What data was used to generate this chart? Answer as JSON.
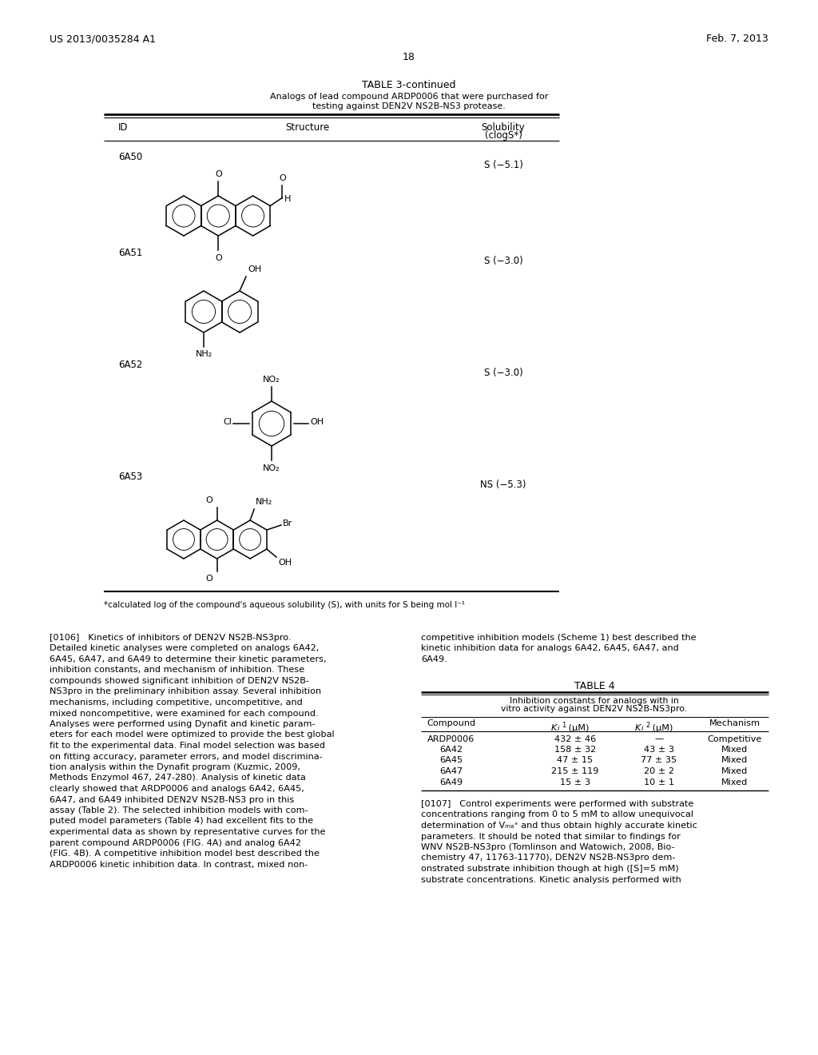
{
  "bg_color": "#ffffff",
  "header_left": "US 2013/0035284 A1",
  "header_right": "Feb. 7, 2013",
  "page_number": "18",
  "table3_title": "TABLE 3-continued",
  "table3_subtitle1": "Analogs of lead compound ARDP0006 that were purchased for",
  "table3_subtitle2": "testing against DEN2V NS2B-NS3 protease.",
  "table3_col1": "ID",
  "table3_col2": "Structure",
  "table3_col3a": "Solubility",
  "table3_col3b": "(clogS*)",
  "table3_footnote": "*calculated log of the compound's aqueous solubility (S), with units for S being mol l⁻¹",
  "compounds": [
    {
      "id": "6A50",
      "solubility": "S (−5.1)"
    },
    {
      "id": "6A51",
      "solubility": "S (−3.0)"
    },
    {
      "id": "6A52",
      "solubility": "S (−3.0)"
    },
    {
      "id": "6A53",
      "solubility": "NS (−5.3)"
    }
  ],
  "table4_title": "TABLE 4",
  "table4_subtitle1": "Inhibition constants for analogs with in",
  "table4_subtitle2": "vitro activity against DEN2V NS2B-NS3pro.",
  "table4_col1": "Compound",
  "table4_col2": "Ki1 (μM)",
  "table4_col3": "Ki2 (μM)",
  "table4_col4": "Mechanism",
  "table4_data": [
    [
      "ARDP0006",
      "432 ± 46",
      "—",
      "Competitive"
    ],
    [
      "6A42",
      "158 ± 32",
      "43 ± 3",
      "Mixed"
    ],
    [
      "6A45",
      "47 ± 15",
      "77 ± 35",
      "Mixed"
    ],
    [
      "6A47",
      "215 ± 119",
      "20 ± 2",
      "Mixed"
    ],
    [
      "6A49",
      "15 ± 3",
      "10 ± 1",
      "Mixed"
    ]
  ],
  "para106_left": [
    "[0106]   Kinetics of inhibitors of DEN2V NS2B-NS3pro.",
    "Detailed kinetic analyses were completed on analogs 6A42,",
    "6A45, 6A47, and 6A49 to determine their kinetic parameters,",
    "inhibition constants, and mechanism of inhibition. These",
    "compounds showed significant inhibition of DEN2V NS2B-",
    "NS3pro in the preliminary inhibition assay. Several inhibition",
    "mechanisms, including competitive, uncompetitive, and",
    "mixed noncompetitive, were examined for each compound.",
    "Analyses were performed using Dynafit and kinetic param-",
    "eters for each model were optimized to provide the best global",
    "fit to the experimental data. Final model selection was based",
    "on fitting accuracy, parameter errors, and model discrimina-",
    "tion analysis within the Dynafit program (Kuzmic, 2009,",
    "Methods Enzymol 467, 247-280). Analysis of kinetic data",
    "clearly showed that ARDP0006 and analogs 6A42, 6A45,",
    "6A47, and 6A49 inhibited DEN2V NS2B-NS3 pro in this",
    "assay (Table 2). The selected inhibition models with com-",
    "puted model parameters (Table 4) had excellent fits to the",
    "experimental data as shown by representative curves for the",
    "parent compound ARDP0006 (FIG. 4A) and analog 6A42",
    "(FIG. 4B). A competitive inhibition model best described the",
    "ARDP0006 kinetic inhibition data. In contrast, mixed non-"
  ],
  "para106_right": [
    "competitive inhibition models (Scheme 1) best described the",
    "kinetic inhibition data for analogs 6A42, 6A45, 6A47, and",
    "6A49."
  ],
  "para107_right": [
    "[0107]   Control experiments were performed with substrate",
    "concentrations ranging from 0 to 5 mM to allow unequivocal",
    "determination of Vₘₐˣ and thus obtain highly accurate kinetic",
    "parameters. It should be noted that similar to findings for",
    "WNV NS2B-NS3pro (Tomlinson and Watowich, 2008, Bio-",
    "chemistry 47, 11763-11770), DEN2V NS2B-NS3pro dem-",
    "onstrated substrate inhibition though at high ([S]=5 mM)",
    "substrate concentrations. Kinetic analysis performed with"
  ]
}
